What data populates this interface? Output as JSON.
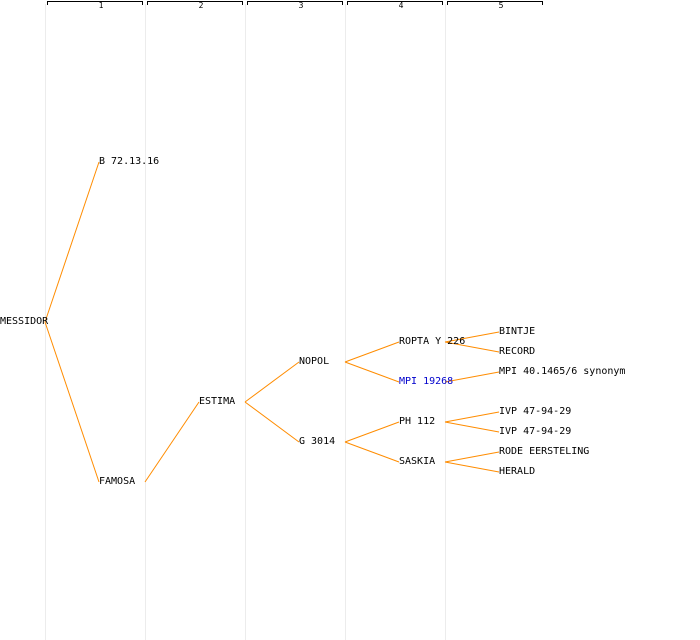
{
  "columns": [
    "1",
    "2",
    "3",
    "4",
    "5"
  ],
  "colors": {
    "edge": "#ff8c00",
    "link": "#0000cc",
    "text": "#000000",
    "gridline": "#ececec"
  },
  "nodes": {
    "messidor": "MESSIDOR",
    "b7213": "B 72.13.16",
    "famosa": "FAMOSA",
    "estima": "ESTIMA",
    "nopol": "NOPOL",
    "g3014": "G 3014",
    "ropta": "ROPTA Y 226",
    "mpi19268": "MPI 19268",
    "ph112": "PH 112",
    "saskia": "SASKIA",
    "bintje": "BINTJE",
    "record": "RECORD",
    "mpi40": "MPI 40.1465/6 synonym",
    "ivp1": "IVP 47-94-29",
    "ivp2": "IVP 47-94-29",
    "rode": "RODE EERSTELING",
    "herald": "HERALD"
  }
}
